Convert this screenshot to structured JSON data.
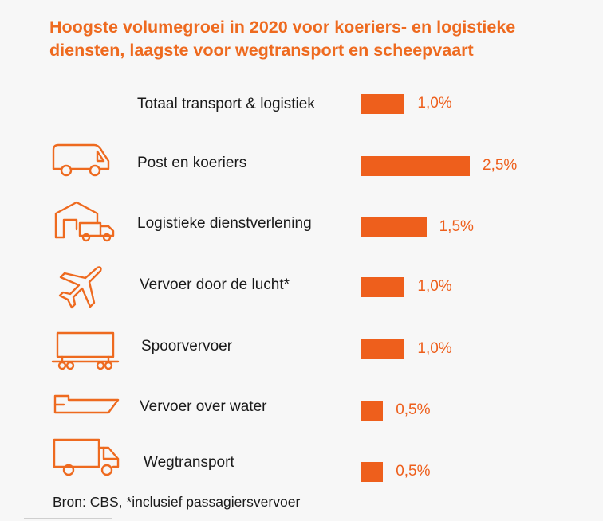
{
  "title_line1": "Hoogste volumegroei in 2020 voor koeriers- en logistieke",
  "title_line2": "diensten, laagste voor wegtransport en scheepvaart",
  "source": "Bron: CBS, *inclusief passagiersvervoer",
  "colors": {
    "accent": "#ee5f1c",
    "icon": "#ee6a1f",
    "text": "#1a1a1a"
  },
  "chart_data": {
    "type": "bar",
    "orientation": "horizontal",
    "title": "Hoogste volumegroei in 2020 voor koeriers- en logistieke diensten, laagste voor wegtransport en scheepvaart",
    "categories": [
      "Totaal transport & logistiek",
      "Post en koeriers",
      "Logistieke dienstverlening",
      "Vervoer door de lucht*",
      "Spoorvervoer",
      "Vervoer over water",
      "Wegtransport"
    ],
    "values": [
      1.0,
      2.5,
      1.5,
      1.0,
      1.0,
      0.5,
      0.5
    ],
    "value_labels": [
      "1,0%",
      "2,5%",
      "1,5%",
      "1,0%",
      "1,0%",
      "0,5%",
      "0,5%"
    ],
    "icons": [
      "",
      "delivery-van-icon",
      "warehouse-truck-icon",
      "airplane-icon",
      "train-wagon-icon",
      "ship-icon",
      "truck-icon"
    ],
    "unit": "%",
    "xlabel": "",
    "ylabel": ""
  }
}
